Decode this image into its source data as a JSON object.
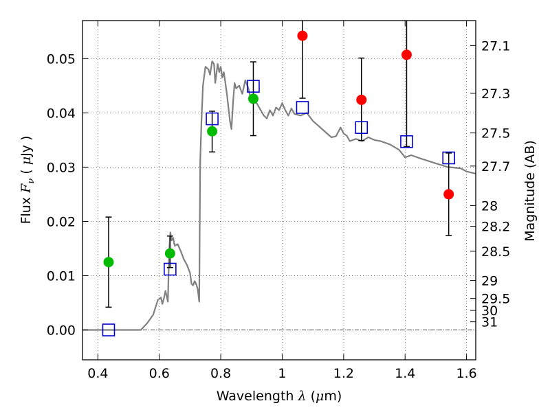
{
  "chart_data": {
    "type": "scatter",
    "xlabel": "Wavelength",
    "xlabel_symbol": "λ",
    "xlabel_unit_open": " (",
    "xlabel_unit_mu": "μ",
    "xlabel_unit_rest": "m)",
    "ylabel": "Flux",
    "ylabel_symbol": "F",
    "ylabel_subscript": "ν",
    "ylabel_unit_open": "( ",
    "ylabel_unit_mu": "μ",
    "ylabel_unit_rest": "Jy )",
    "y2label": "Magnitude (AB)",
    "xlim": [
      0.35,
      1.63
    ],
    "ylim": [
      -0.0055,
      0.057
    ],
    "grid": true,
    "x_ticks": [
      0.4,
      0.6,
      0.8,
      1.0,
      1.2,
      1.4,
      1.6
    ],
    "x_tick_labels": [
      "0.4",
      "0.6",
      "0.8",
      "1",
      "1.2",
      "1.4",
      "1.6"
    ],
    "y_ticks": [
      0.0,
      0.01,
      0.02,
      0.03,
      0.04,
      0.05
    ],
    "y_tick_labels": [
      "0.00",
      "0.01",
      "0.02",
      "0.03",
      "0.04",
      "0.05"
    ],
    "right_ticks": [
      {
        "label": "27.1",
        "flux": 0.0524
      },
      {
        "label": "27.3",
        "flux": 0.0436
      },
      {
        "label": "27.5",
        "flux": 0.0363
      },
      {
        "label": "27.7",
        "flux": 0.0302
      },
      {
        "label": "28",
        "flux": 0.0229
      },
      {
        "label": "28.2",
        "flux": 0.0191
      },
      {
        "label": "28.5",
        "flux": 0.0145
      },
      {
        "label": "29",
        "flux": 0.0091
      },
      {
        "label": "29.5",
        "flux": 0.0058
      },
      {
        "label": "30",
        "flux": 0.0036
      },
      {
        "label": "31",
        "flux": 0.0015
      }
    ],
    "colors": {
      "sed": "#808080",
      "model": "#0000cc",
      "green": "#00bb00",
      "red": "#ff0000",
      "errorbar": "#000000",
      "grid": "#444444"
    },
    "series": [
      {
        "kind": "line",
        "points": [
          [
            0.35,
            0
          ],
          [
            0.54,
            0
          ],
          [
            0.56,
            0.0012
          ],
          [
            0.58,
            0.0028
          ],
          [
            0.595,
            0.0055
          ],
          [
            0.605,
            0.006
          ],
          [
            0.61,
            0.0048
          ],
          [
            0.615,
            0.0058
          ],
          [
            0.62,
            0.0072
          ],
          [
            0.625,
            0.006
          ],
          [
            0.628,
            0.0052
          ],
          [
            0.632,
            0.0145
          ],
          [
            0.636,
            0.018
          ],
          [
            0.64,
            0.0165
          ],
          [
            0.645,
            0.017
          ],
          [
            0.65,
            0.0155
          ],
          [
            0.66,
            0.0158
          ],
          [
            0.67,
            0.0145
          ],
          [
            0.68,
            0.013
          ],
          [
            0.69,
            0.012
          ],
          [
            0.7,
            0.0105
          ],
          [
            0.705,
            0.0085
          ],
          [
            0.71,
            0.0082
          ],
          [
            0.715,
            0.009
          ],
          [
            0.72,
            0.0085
          ],
          [
            0.725,
            0.0075
          ],
          [
            0.73,
            0.0052
          ],
          [
            0.733,
            0.031
          ],
          [
            0.737,
            0.038
          ],
          [
            0.742,
            0.045
          ],
          [
            0.75,
            0.0485
          ],
          [
            0.76,
            0.048
          ],
          [
            0.765,
            0.047
          ],
          [
            0.772,
            0.0495
          ],
          [
            0.778,
            0.049
          ],
          [
            0.782,
            0.0455
          ],
          [
            0.79,
            0.049
          ],
          [
            0.795,
            0.0475
          ],
          [
            0.8,
            0.0485
          ],
          [
            0.805,
            0.0465
          ],
          [
            0.81,
            0.0475
          ],
          [
            0.815,
            0.0455
          ],
          [
            0.82,
            0.0435
          ],
          [
            0.83,
            0.0385
          ],
          [
            0.835,
            0.037
          ],
          [
            0.84,
            0.042
          ],
          [
            0.845,
            0.0455
          ],
          [
            0.85,
            0.0445
          ],
          [
            0.86,
            0.045
          ],
          [
            0.87,
            0.0435
          ],
          [
            0.88,
            0.046
          ],
          [
            0.89,
            0.0445
          ],
          [
            0.9,
            0.042
          ],
          [
            0.91,
            0.0425
          ],
          [
            0.92,
            0.0415
          ],
          [
            0.93,
            0.0405
          ],
          [
            0.94,
            0.0395
          ],
          [
            0.95,
            0.039
          ],
          [
            0.96,
            0.0405
          ],
          [
            0.97,
            0.0395
          ],
          [
            0.98,
            0.041
          ],
          [
            0.99,
            0.0405
          ],
          [
            1.0,
            0.0418
          ],
          [
            1.01,
            0.0405
          ],
          [
            1.02,
            0.0395
          ],
          [
            1.03,
            0.0408
          ],
          [
            1.04,
            0.0398
          ],
          [
            1.06,
            0.0395
          ],
          [
            1.08,
            0.04
          ],
          [
            1.1,
            0.0385
          ],
          [
            1.12,
            0.0375
          ],
          [
            1.14,
            0.0365
          ],
          [
            1.16,
            0.0355
          ],
          [
            1.175,
            0.0357
          ],
          [
            1.19,
            0.0373
          ],
          [
            1.2,
            0.0362
          ],
          [
            1.21,
            0.0358
          ],
          [
            1.22,
            0.0348
          ],
          [
            1.24,
            0.0352
          ],
          [
            1.26,
            0.0348
          ],
          [
            1.28,
            0.0355
          ],
          [
            1.3,
            0.035
          ],
          [
            1.32,
            0.0348
          ],
          [
            1.35,
            0.0342
          ],
          [
            1.38,
            0.0332
          ],
          [
            1.4,
            0.0318
          ],
          [
            1.42,
            0.0322
          ],
          [
            1.45,
            0.0316
          ],
          [
            1.5,
            0.0307
          ],
          [
            1.54,
            0.03
          ],
          [
            1.58,
            0.0298
          ],
          [
            1.6,
            0.0292
          ],
          [
            1.63,
            0.0288
          ]
        ]
      },
      {
        "kind": "model_squares",
        "points": [
          [
            0.435,
            0.0
          ],
          [
            0.635,
            0.0112
          ],
          [
            0.772,
            0.0389
          ],
          [
            0.906,
            0.0449
          ],
          [
            1.066,
            0.041
          ],
          [
            1.258,
            0.0373
          ],
          [
            1.405,
            0.0347
          ],
          [
            1.542,
            0.0317
          ]
        ]
      },
      {
        "kind": "green_points",
        "points": [
          [
            0.435,
            0.0125,
            0.0042,
            0.0208
          ],
          [
            0.635,
            0.0141,
            0.0115,
            0.0173
          ],
          [
            0.772,
            0.0366,
            0.0328,
            0.0403
          ],
          [
            0.906,
            0.0426,
            0.0358,
            0.0494
          ]
        ]
      },
      {
        "kind": "red_points",
        "points": [
          [
            1.066,
            0.0542,
            0.0427,
            0.057
          ],
          [
            1.258,
            0.0424,
            0.0349,
            0.0501
          ],
          [
            1.405,
            0.0507,
            0.0338,
            0.057
          ],
          [
            1.542,
            0.025,
            0.0174,
            0.0326
          ]
        ]
      }
    ]
  }
}
